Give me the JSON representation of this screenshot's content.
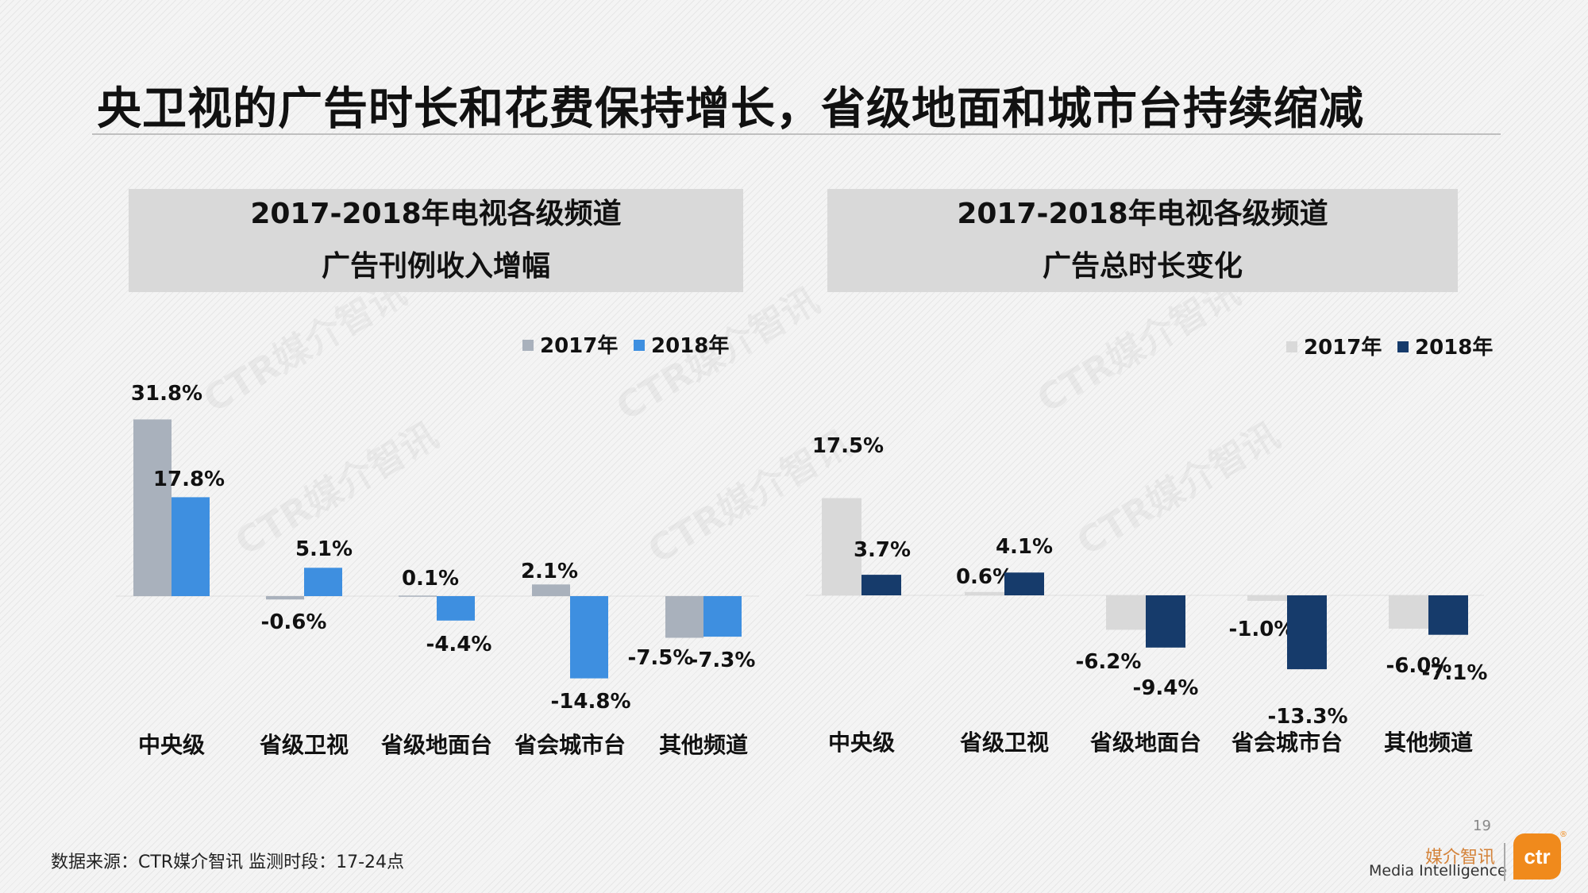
{
  "title": "央卫视的广告时长和花费保持增长，省级地面和城市台持续缩减",
  "watermark": "CTR媒介智讯",
  "footnote": "数据来源：CTR媒介智讯   监测时段：17-24点",
  "page_number": "19",
  "brand": {
    "name_cn": "媒介智讯",
    "name_en": "Media Intelligence",
    "logo_text": "ctr",
    "registered": "®"
  },
  "colors": {
    "left_2017": "#a9b1bc",
    "left_2018": "#3e8fe0",
    "right_2017": "#d9d9d9",
    "right_2018": "#163b6b"
  },
  "chart_data": [
    {
      "type": "bar",
      "title": "2017-2018年电视各级频道",
      "subtitle": "广告刊例收入增幅",
      "categories": [
        "中央级",
        "省级卫视",
        "省级地面台",
        "省会城市台",
        "其他频道"
      ],
      "series": [
        {
          "name": "2017年",
          "values": [
            31.8,
            -0.6,
            0.1,
            2.1,
            -7.5
          ],
          "labels": [
            "31.8%",
            "-0.6%",
            "0.1%",
            "2.1%",
            "-7.5%"
          ]
        },
        {
          "name": "2018年",
          "values": [
            17.8,
            5.1,
            -4.4,
            -14.8,
            -7.3
          ],
          "labels": [
            "17.8%",
            "5.1%",
            "-4.4%",
            "-14.8%",
            "-7.3%"
          ]
        }
      ],
      "unit": "%",
      "legend": "top-right",
      "grid": false
    },
    {
      "type": "bar",
      "title": "2017-2018年电视各级频道",
      "subtitle": "广告总时长变化",
      "categories": [
        "中央级",
        "省级卫视",
        "省级地面台",
        "省会城市台",
        "其他频道"
      ],
      "series": [
        {
          "name": "2017年",
          "values": [
            17.5,
            0.6,
            -6.2,
            -1.0,
            -6.0
          ],
          "labels": [
            "17.5%",
            "0.6%",
            "-6.2%",
            "-1.0%",
            "-6.0%"
          ]
        },
        {
          "name": "2018年",
          "values": [
            3.7,
            4.1,
            -9.4,
            -13.3,
            -7.1
          ],
          "labels": [
            "3.7%",
            "4.1%",
            "-9.4%",
            "-13.3%",
            "-7.1%"
          ]
        }
      ],
      "unit": "%",
      "legend": "top-right",
      "grid": false
    }
  ]
}
